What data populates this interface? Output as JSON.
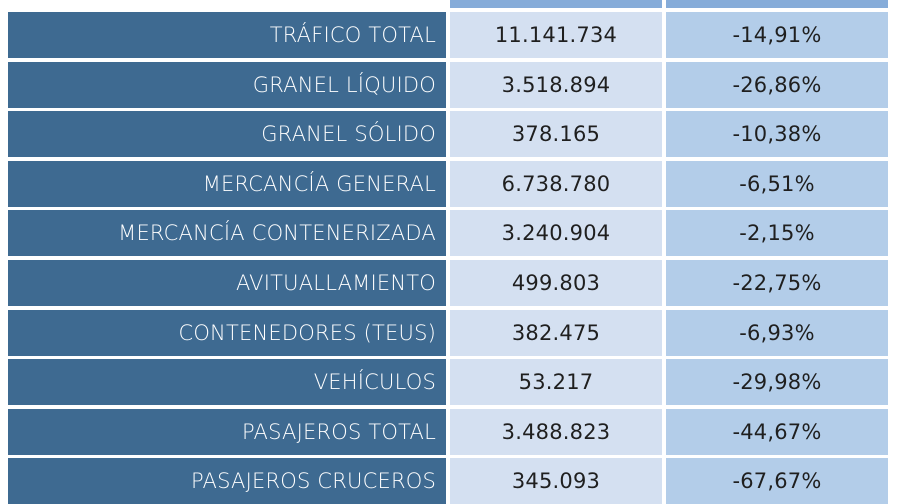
{
  "table": {
    "rows": [
      {
        "label": "TRÁFICO TOTAL",
        "value": "11.141.734",
        "change": "-14,91%"
      },
      {
        "label": "GRANEL LÍQUIDO",
        "value": "3.518.894",
        "change": "-26,86%"
      },
      {
        "label": "GRANEL SÓLIDO",
        "value": "378.165",
        "change": "-10,38%"
      },
      {
        "label": "MERCANCÍA GENERAL",
        "value": "6.738.780",
        "change": "-6,51%"
      },
      {
        "label": "MERCANCÍA CONTENERIZADA",
        "value": "3.240.904",
        "change": "-2,15%"
      },
      {
        "label": "AVITUALLAMIENTO",
        "value": "499.803",
        "change": "-22,75%"
      },
      {
        "label": "CONTENEDORES (TEUS)",
        "value": "382.475",
        "change": "-6,93%"
      },
      {
        "label": "VEHÍCULOS",
        "value": "53.217",
        "change": "-29,98%"
      },
      {
        "label": "PASAJEROS TOTAL",
        "value": "3.488.823",
        "change": "-44,67%"
      },
      {
        "label": "PASAJEROS CRUCEROS",
        "value": "345.093",
        "change": "-67,67%"
      }
    ]
  },
  "colors": {
    "label_bg": "#3e6a91",
    "value_bg": "#d4e0f1",
    "change_bg": "#b3cde9",
    "header_bg": "#86acd9"
  }
}
